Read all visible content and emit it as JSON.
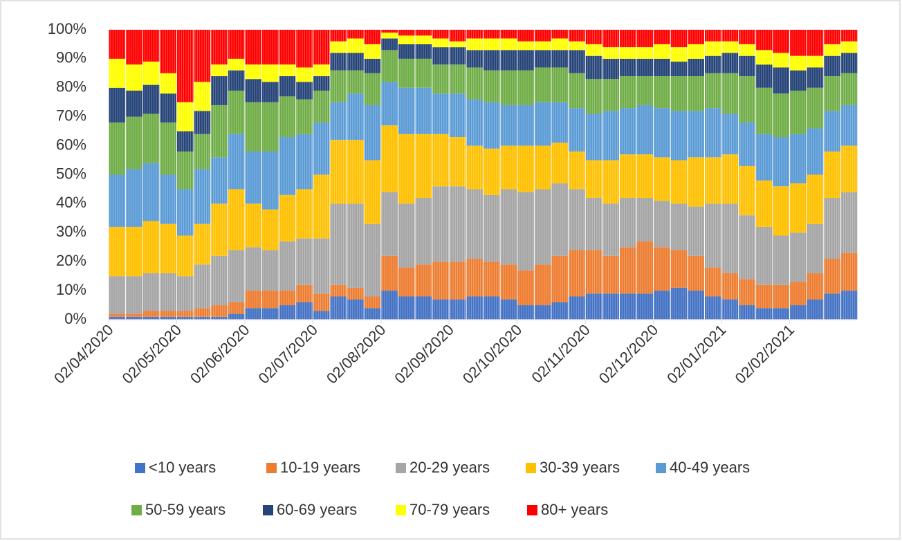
{
  "chart_data": {
    "type": "stacked_bar_100",
    "categories": [
      "02/04/2020",
      null,
      null,
      null,
      "02/05/2020",
      null,
      null,
      null,
      "02/06/2020",
      null,
      null,
      null,
      "02/07/2020",
      null,
      null,
      null,
      "02/08/2020",
      null,
      null,
      null,
      "02/09/2020",
      null,
      null,
      null,
      "02/10/2020",
      null,
      null,
      null,
      "02/11/2020",
      null,
      null,
      null,
      "02/12/2020",
      null,
      null,
      null,
      "02/01/2021",
      null,
      null,
      null,
      "02/02/2021",
      null,
      null,
      null
    ],
    "series": [
      {
        "name": "<10 years",
        "color": "#4472c4",
        "values": [
          1,
          1,
          1,
          1,
          1,
          1,
          1,
          2,
          4,
          4,
          5,
          6,
          3,
          8,
          7,
          4,
          10,
          8,
          8,
          7,
          7,
          8,
          8,
          7,
          5,
          5,
          6,
          8,
          9,
          9,
          9,
          9,
          10,
          11,
          10,
          8,
          7,
          5,
          4,
          4,
          5,
          7,
          9,
          10
        ]
      },
      {
        "name": "10-19 years",
        "color": "#ed7d31",
        "values": [
          1,
          1,
          2,
          2,
          2,
          3,
          4,
          4,
          6,
          6,
          5,
          6,
          6,
          4,
          4,
          4,
          12,
          10,
          11,
          13,
          13,
          13,
          12,
          12,
          12,
          14,
          16,
          16,
          15,
          13,
          16,
          18,
          15,
          13,
          12,
          10,
          9,
          9,
          8,
          8,
          8,
          9,
          12,
          13
        ]
      },
      {
        "name": "20-29 years",
        "color": "#a5a5a5",
        "values": [
          13,
          13,
          13,
          13,
          12,
          15,
          17,
          18,
          15,
          14,
          17,
          16,
          19,
          28,
          29,
          25,
          22,
          22,
          23,
          26,
          26,
          24,
          23,
          26,
          27,
          26,
          25,
          21,
          18,
          18,
          17,
          15,
          16,
          16,
          17,
          22,
          24,
          22,
          20,
          17,
          17,
          17,
          21,
          21
        ]
      },
      {
        "name": "30-39 years",
        "color": "#ffc000",
        "values": [
          17,
          17,
          18,
          17,
          14,
          14,
          18,
          21,
          15,
          14,
          16,
          17,
          22,
          22,
          22,
          22,
          23,
          24,
          22,
          18,
          17,
          15,
          16,
          15,
          16,
          15,
          14,
          13,
          13,
          15,
          15,
          15,
          15,
          15,
          17,
          16,
          17,
          17,
          16,
          17,
          17,
          17,
          16,
          16
        ]
      },
      {
        "name": "40-49 years",
        "color": "#5b9bd5",
        "values": [
          18,
          20,
          20,
          17,
          16,
          19,
          16,
          19,
          18,
          20,
          20,
          19,
          18,
          13,
          16,
          19,
          15,
          16,
          16,
          14,
          15,
          16,
          16,
          14,
          14,
          15,
          14,
          15,
          16,
          17,
          16,
          17,
          17,
          17,
          16,
          17,
          14,
          15,
          16,
          17,
          17,
          16,
          14,
          14
        ]
      },
      {
        "name": "50-59 years",
        "color": "#70ad47",
        "values": [
          18,
          18,
          17,
          18,
          13,
          12,
          18,
          15,
          17,
          17,
          14,
          12,
          11,
          11,
          8,
          11,
          11,
          10,
          10,
          10,
          10,
          11,
          11,
          12,
          12,
          12,
          12,
          12,
          12,
          11,
          11,
          10,
          11,
          12,
          12,
          12,
          14,
          16,
          16,
          15,
          15,
          14,
          12,
          11
        ]
      },
      {
        "name": "60-69 years",
        "color": "#264478",
        "values": [
          12,
          9,
          10,
          10,
          7,
          8,
          10,
          7,
          8,
          7,
          7,
          6,
          5,
          6,
          6,
          5,
          4,
          5,
          5,
          6,
          6,
          6,
          7,
          7,
          7,
          6,
          6,
          8,
          8,
          7,
          6,
          6,
          6,
          5,
          6,
          6,
          7,
          7,
          8,
          9,
          7,
          7,
          7,
          7
        ]
      },
      {
        "name": "70-79 years",
        "color": "#ffff00",
        "values": [
          10,
          9,
          8,
          7,
          10,
          10,
          4,
          4,
          5,
          6,
          4,
          5,
          4,
          4,
          5,
          5,
          2,
          3,
          3,
          3,
          2,
          4,
          4,
          4,
          3,
          3,
          4,
          3,
          4,
          4,
          4,
          4,
          5,
          5,
          5,
          5,
          4,
          4,
          5,
          5,
          5,
          4,
          4,
          4
        ]
      },
      {
        "name": "80+ years",
        "color": "#ff0000",
        "values": [
          10,
          12,
          11,
          15,
          25,
          18,
          12,
          10,
          12,
          12,
          12,
          13,
          12,
          4,
          3,
          5,
          1,
          2,
          2,
          3,
          4,
          3,
          3,
          3,
          4,
          4,
          3,
          4,
          5,
          6,
          6,
          6,
          5,
          6,
          5,
          4,
          4,
          5,
          7,
          8,
          9,
          9,
          5,
          4
        ]
      }
    ],
    "ylim": [
      0,
      100
    ],
    "yticks": [
      {
        "value": 0,
        "label": "0%"
      },
      {
        "value": 10,
        "label": "10%"
      },
      {
        "value": 20,
        "label": "20%"
      },
      {
        "value": 30,
        "label": "30%"
      },
      {
        "value": 40,
        "label": "40%"
      },
      {
        "value": 50,
        "label": "50%"
      },
      {
        "value": 60,
        "label": "60%"
      },
      {
        "value": 70,
        "label": "70%"
      },
      {
        "value": 80,
        "label": "80%"
      },
      {
        "value": 90,
        "label": "90%"
      },
      {
        "value": 100,
        "label": "100%"
      }
    ],
    "grid": false,
    "legend": "bottom"
  }
}
